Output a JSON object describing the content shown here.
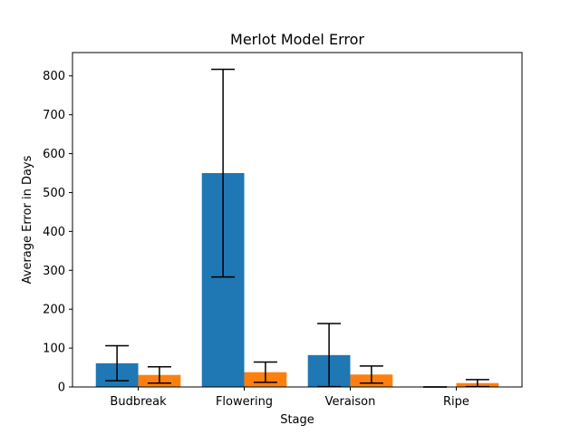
{
  "chart_data": {
    "type": "bar",
    "title": "Merlot Model Error",
    "xlabel": "Stage",
    "ylabel": "Average Error in Days",
    "categories": [
      "Budbreak",
      "Flowering",
      "Veraison",
      "Ripe"
    ],
    "ylim": [
      0,
      860
    ],
    "yticks": [
      0,
      100,
      200,
      300,
      400,
      500,
      600,
      700,
      800
    ],
    "grid": false,
    "legend": "none",
    "series": [
      {
        "color": "#1f77b4",
        "values": [
          61,
          550,
          82,
          0
        ],
        "errors": [
          45,
          267,
          81,
          0
        ]
      },
      {
        "color": "#ff7f0e",
        "values": [
          31,
          38,
          32,
          10
        ],
        "errors": [
          21,
          26,
          22,
          9
        ]
      }
    ]
  }
}
